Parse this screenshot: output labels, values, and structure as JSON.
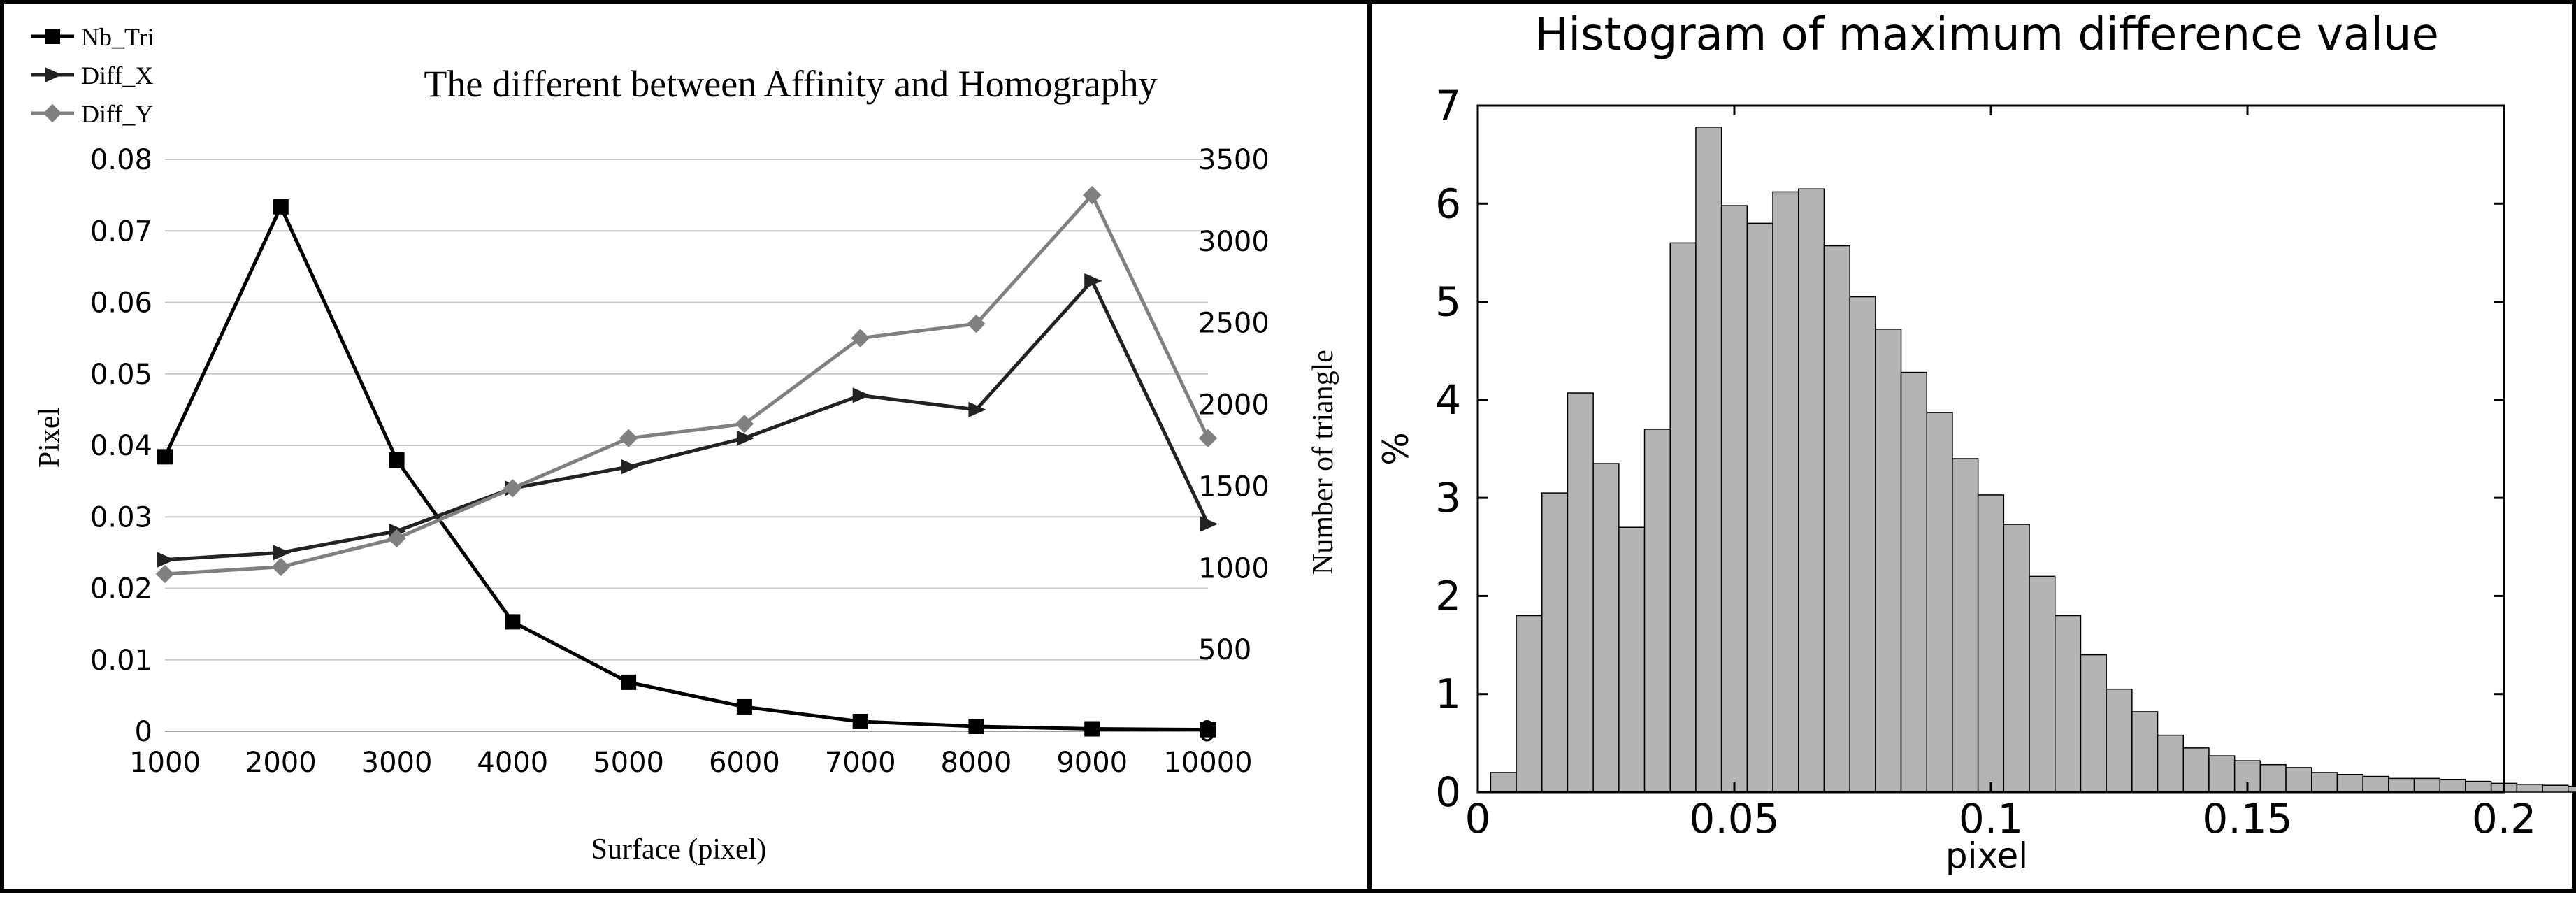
{
  "chart_data": [
    {
      "type": "line",
      "title": "The different between Affinity and Homography",
      "xlabel": "Surface (pixel)",
      "ylabel": "Pixel",
      "y2label": "Number of triangle",
      "categories": [
        1000,
        2000,
        3000,
        4000,
        5000,
        6000,
        7000,
        8000,
        9000,
        10000
      ],
      "ylim": [
        0,
        0.08
      ],
      "y2lim": [
        0,
        3500
      ],
      "y_ticks": [
        "0",
        "0.01",
        "0.02",
        "0.03",
        "0.04",
        "0.05",
        "0.06",
        "0.07",
        "0.08"
      ],
      "y2_ticks": [
        "0",
        "500",
        "1000",
        "1500",
        "2000",
        "2500",
        "3000",
        "3500"
      ],
      "x_ticks": [
        "1000",
        "2000",
        "3000",
        "4000",
        "5000",
        "6000",
        "7000",
        "8000",
        "9000",
        "10000"
      ],
      "grid": true,
      "legend_position": "top-left",
      "series": [
        {
          "name": "Nb_Tri",
          "axis": "right",
          "marker": "square",
          "color": "#000000",
          "values": [
            1680,
            3210,
            1660,
            670,
            300,
            150,
            60,
            30,
            15,
            10
          ]
        },
        {
          "name": "Diff_X",
          "axis": "left",
          "marker": "triangle",
          "color": "#222222",
          "values": [
            0.024,
            0.025,
            0.028,
            0.034,
            0.037,
            0.041,
            0.047,
            0.045,
            0.063,
            0.029
          ]
        },
        {
          "name": "Diff_Y",
          "axis": "left",
          "marker": "diamond",
          "color": "#808080",
          "values": [
            0.022,
            0.023,
            0.027,
            0.034,
            0.041,
            0.043,
            0.055,
            0.057,
            0.075,
            0.041
          ]
        }
      ]
    },
    {
      "type": "bar",
      "title": "Histogram of maximum difference value",
      "xlabel": "pixel",
      "ylabel": "%",
      "xlim": [
        0,
        0.2
      ],
      "ylim": [
        0,
        7
      ],
      "x_ticks": [
        "0",
        "0.05",
        "0.1",
        "0.15",
        "0.2"
      ],
      "y_ticks": [
        "0",
        "1",
        "2",
        "3",
        "4",
        "5",
        "6",
        "7"
      ],
      "bin_width": 0.005,
      "bin_start": 0.0025,
      "bar_color": "#b4b4b4",
      "values": [
        0.2,
        1.8,
        3.05,
        4.07,
        3.35,
        2.7,
        3.7,
        5.6,
        6.78,
        5.98,
        5.8,
        6.12,
        6.15,
        5.57,
        5.05,
        4.72,
        4.28,
        3.87,
        3.4,
        3.03,
        2.73,
        2.2,
        1.8,
        1.4,
        1.05,
        0.82,
        0.58,
        0.45,
        0.37,
        0.32,
        0.28,
        0.25,
        0.2,
        0.18,
        0.16,
        0.14,
        0.14,
        0.13,
        0.11,
        0.09,
        0.08,
        0.07,
        0.06,
        0.05,
        0.05,
        0.04,
        0.03,
        0.03,
        0.02,
        0.02
      ]
    }
  ]
}
